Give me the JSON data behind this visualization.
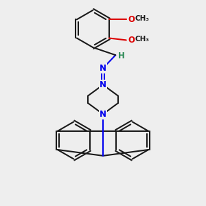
{
  "bg_color": "#eeeeee",
  "bond_color": "#1a1a1a",
  "n_color": "#0000ee",
  "o_color": "#dd0000",
  "h_color": "#2e8b57",
  "line_width": 1.5,
  "font_size_atom": 8.5,
  "font_size_small": 7.5,
  "xlim": [
    0,
    10
  ],
  "ylim": [
    0,
    10
  ]
}
